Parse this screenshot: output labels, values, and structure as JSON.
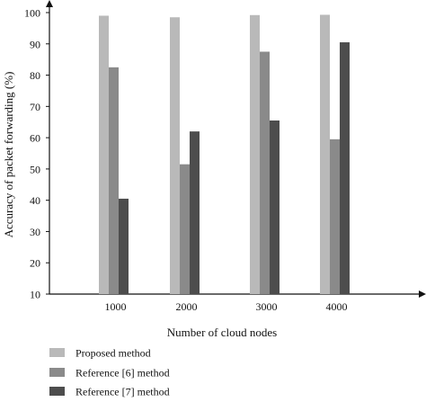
{
  "chart_data": {
    "type": "bar",
    "title": "",
    "xlabel": "Number of cloud nodes",
    "ylabel": "Accuracy of packet forwarding (%)",
    "ylim": [
      10,
      100
    ],
    "yticks": [
      "10",
      "20",
      "30",
      "40",
      "50",
      "60",
      "70",
      "80",
      "90",
      "100"
    ],
    "categories": [
      "1000",
      "2000",
      "3000",
      "4000"
    ],
    "series": [
      {
        "name": "Proposed method",
        "values": [
          99,
          98.5,
          99.2,
          99.3
        ],
        "color": "#b9b9b9"
      },
      {
        "name": "Reference [6] method",
        "values": [
          82.5,
          51.5,
          87.5,
          59.5
        ],
        "color": "#8a8a8a"
      },
      {
        "name": "Reference [7] method",
        "values": [
          40.5,
          62,
          65.5,
          90.5
        ],
        "color": "#4d4d4d"
      }
    ],
    "grid": false,
    "legend": "bottom-left"
  }
}
